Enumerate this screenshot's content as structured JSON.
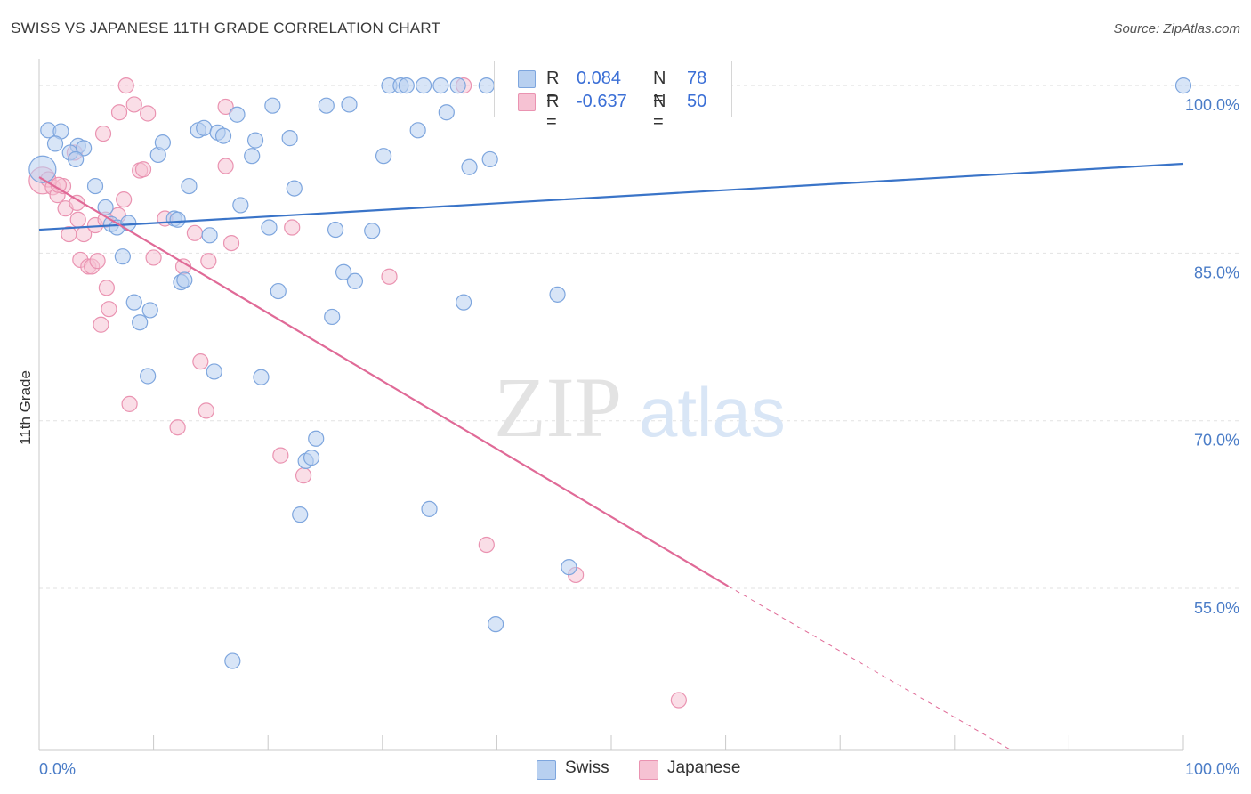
{
  "title": "SWISS VS JAPANESE 11TH GRADE CORRELATION CHART",
  "source": "Source: ZipAtlas.com",
  "watermark": {
    "zip": "ZIP",
    "atlas": "atlas"
  },
  "colors": {
    "swiss_fill": "#b8d0f0",
    "swiss_stroke": "#7ea6de",
    "swiss_line": "#3a74c8",
    "japanese_fill": "#f6c2d3",
    "japanese_stroke": "#ea93b1",
    "japanese_line": "#e06a97",
    "grid": "#e2e2e2",
    "tick_text": "#4a7cc7"
  },
  "legend": {
    "rows": [
      {
        "r_label": "R =",
        "r_value": "0.084",
        "n_label": "N =",
        "n_value": "78"
      },
      {
        "r_label": "R =",
        "r_value": "-0.637",
        "n_label": "N =",
        "n_value": "50"
      }
    ]
  },
  "bottom_legend": {
    "swiss": "Swiss",
    "japanese": "Japanese"
  },
  "chart_data": {
    "type": "scatter",
    "xlabel": "",
    "ylabel": "11th Grade",
    "xlim": [
      0,
      100
    ],
    "ylim": [
      40.5,
      102
    ],
    "x_tick_labels": [
      "0.0%",
      "100.0%"
    ],
    "y_ticks": [
      55,
      70,
      85,
      100
    ],
    "y_tick_labels": [
      "55.0%",
      "70.0%",
      "85.0%",
      "100.0%"
    ],
    "grid": true,
    "legend_position": "top-center",
    "series": [
      {
        "name": "Swiss",
        "trend": {
          "x": [
            0,
            100
          ],
          "y": [
            87.1,
            93.0
          ]
        },
        "points": [
          [
            0.3,
            92.5
          ],
          [
            0.8,
            96.0
          ],
          [
            1.9,
            95.9
          ],
          [
            1.4,
            94.8
          ],
          [
            3.4,
            94.6
          ],
          [
            2.7,
            94.0
          ],
          [
            3.9,
            94.4
          ],
          [
            3.2,
            93.4
          ],
          [
            4.9,
            91.0
          ],
          [
            5.8,
            89.1
          ],
          [
            6.3,
            87.6
          ],
          [
            6.8,
            87.3
          ],
          [
            7.8,
            87.7
          ],
          [
            7.3,
            84.7
          ],
          [
            8.3,
            80.6
          ],
          [
            8.8,
            78.8
          ],
          [
            9.7,
            79.9
          ],
          [
            9.5,
            74.0
          ],
          [
            10.4,
            93.8
          ],
          [
            10.8,
            94.9
          ],
          [
            11.8,
            88.1
          ],
          [
            12.1,
            88.0
          ],
          [
            13.1,
            91.0
          ],
          [
            12.4,
            82.4
          ],
          [
            12.7,
            82.6
          ],
          [
            13.9,
            96.0
          ],
          [
            14.4,
            96.2
          ],
          [
            14.9,
            86.6
          ],
          [
            15.3,
            74.4
          ],
          [
            15.6,
            95.8
          ],
          [
            16.1,
            95.5
          ],
          [
            16.9,
            48.5
          ],
          [
            17.3,
            97.4
          ],
          [
            17.6,
            89.3
          ],
          [
            18.6,
            93.7
          ],
          [
            18.9,
            95.1
          ],
          [
            19.4,
            73.9
          ],
          [
            20.1,
            87.3
          ],
          [
            20.4,
            98.2
          ],
          [
            20.9,
            81.6
          ],
          [
            21.9,
            95.3
          ],
          [
            22.3,
            90.8
          ],
          [
            22.8,
            61.6
          ],
          [
            23.3,
            66.4
          ],
          [
            23.8,
            66.7
          ],
          [
            24.2,
            68.4
          ],
          [
            25.1,
            98.2
          ],
          [
            25.6,
            79.3
          ],
          [
            25.9,
            87.1
          ],
          [
            26.6,
            83.3
          ],
          [
            27.1,
            98.3
          ],
          [
            27.6,
            82.5
          ],
          [
            29.1,
            87.0
          ],
          [
            30.1,
            93.7
          ],
          [
            30.6,
            100.0
          ],
          [
            31.6,
            100.0
          ],
          [
            32.1,
            100.0
          ],
          [
            33.1,
            96.0
          ],
          [
            33.6,
            100.0
          ],
          [
            34.1,
            62.1
          ],
          [
            35.1,
            100.0
          ],
          [
            35.6,
            97.6
          ],
          [
            36.6,
            100.0
          ],
          [
            37.1,
            80.6
          ],
          [
            37.6,
            92.7
          ],
          [
            39.1,
            100.0
          ],
          [
            39.4,
            93.4
          ],
          [
            39.9,
            51.8
          ],
          [
            41.1,
            100.0
          ],
          [
            42.1,
            100.0
          ],
          [
            45.1,
            100.0
          ],
          [
            46.1,
            100.0
          ],
          [
            47.1,
            100.0
          ],
          [
            48.1,
            100.0
          ],
          [
            49.1,
            100.0
          ],
          [
            52.1,
            100.0
          ],
          [
            45.3,
            81.3
          ],
          [
            46.3,
            56.9
          ],
          [
            100.0,
            100.0
          ]
        ]
      },
      {
        "name": "Japanese",
        "trend": {
          "x": [
            0,
            60.2
          ],
          "y": [
            91.8,
            55.2
          ]
        },
        "trend_dashed": {
          "x": [
            60.2,
            85
          ],
          "y": [
            55.2,
            40.5
          ]
        },
        "points": [
          [
            0.3,
            91.5
          ],
          [
            0.8,
            91.6
          ],
          [
            1.2,
            90.9
          ],
          [
            1.6,
            90.2
          ],
          [
            2.1,
            91.0
          ],
          [
            2.3,
            89.0
          ],
          [
            2.6,
            86.7
          ],
          [
            3.1,
            94.0
          ],
          [
            3.4,
            88.0
          ],
          [
            3.3,
            89.5
          ],
          [
            3.6,
            84.4
          ],
          [
            3.9,
            86.7
          ],
          [
            4.3,
            83.8
          ],
          [
            4.6,
            83.8
          ],
          [
            4.9,
            87.5
          ],
          [
            5.1,
            84.3
          ],
          [
            5.4,
            78.6
          ],
          [
            5.6,
            95.7
          ],
          [
            5.9,
            81.9
          ],
          [
            6.1,
            80.0
          ],
          [
            6.9,
            88.4
          ],
          [
            7.0,
            97.6
          ],
          [
            7.4,
            89.8
          ],
          [
            7.6,
            100.0
          ],
          [
            7.9,
            71.5
          ],
          [
            8.3,
            98.3
          ],
          [
            8.8,
            92.4
          ],
          [
            9.1,
            92.5
          ],
          [
            9.5,
            97.5
          ],
          [
            10.0,
            84.6
          ],
          [
            11.0,
            88.1
          ],
          [
            12.1,
            69.4
          ],
          [
            12.6,
            83.8
          ],
          [
            13.6,
            86.8
          ],
          [
            14.1,
            75.3
          ],
          [
            14.6,
            70.9
          ],
          [
            14.8,
            84.3
          ],
          [
            16.3,
            92.8
          ],
          [
            16.3,
            98.1
          ],
          [
            16.8,
            85.9
          ],
          [
            21.1,
            66.9
          ],
          [
            22.1,
            87.3
          ],
          [
            23.1,
            65.1
          ],
          [
            30.6,
            82.9
          ],
          [
            37.1,
            100.0
          ],
          [
            39.1,
            58.9
          ],
          [
            46.9,
            56.2
          ],
          [
            55.9,
            45.0
          ],
          [
            1.7,
            91.1
          ],
          [
            5.8,
            88.0
          ]
        ]
      }
    ]
  }
}
